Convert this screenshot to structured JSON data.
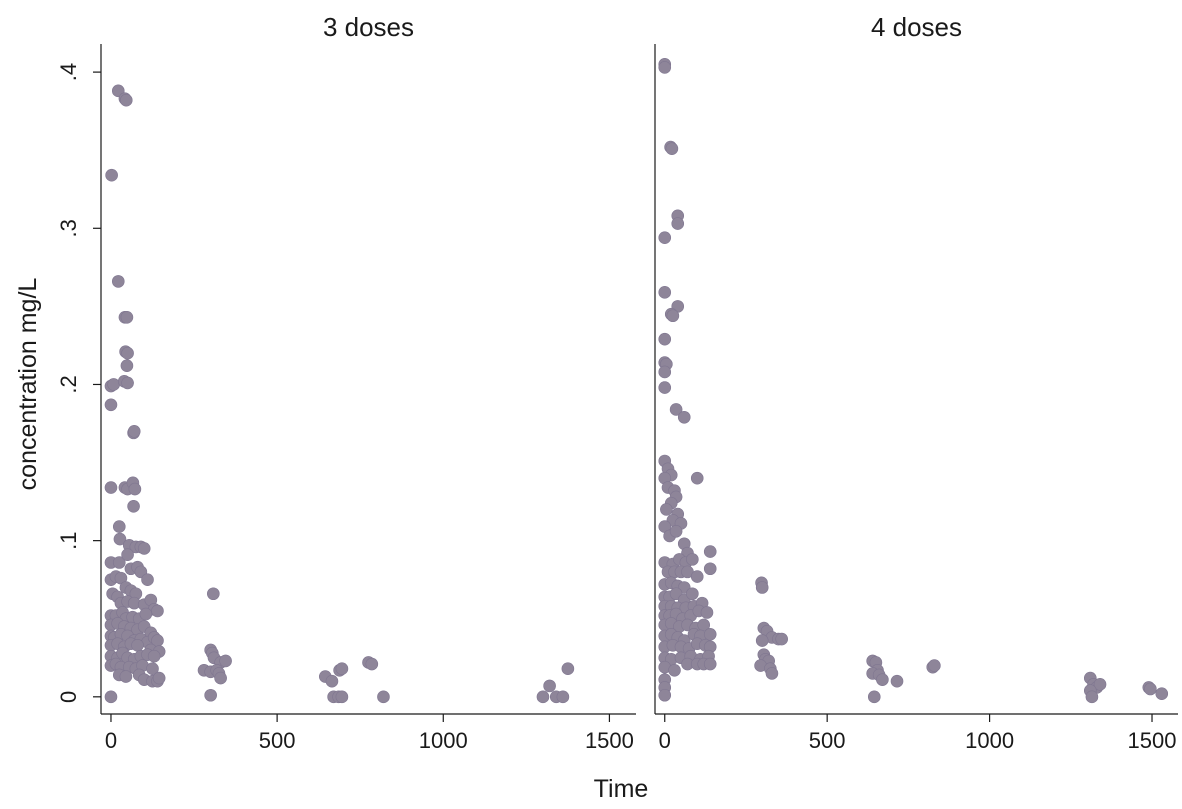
{
  "chart_data": {
    "type": "scatter",
    "xlabel": "Time",
    "ylabel": "concentration mg/L",
    "point_color": "#8e8599",
    "grid": false,
    "panels": [
      {
        "title": "3 doses",
        "xlim": [
          -30,
          1580
        ],
        "ylim": [
          -0.011,
          0.418
        ],
        "xticks": [
          0,
          500,
          1000,
          1500
        ],
        "xtick_labels": [
          "0",
          "500",
          "1000",
          "1500"
        ],
        "yticks": [
          0,
          0.1,
          0.2,
          0.3,
          0.4
        ],
        "ytick_labels": [
          "0",
          ".1",
          ".2",
          ".3",
          ".4"
        ],
        "points": [
          [
            2,
            0.334
          ],
          [
            22,
            0.388
          ],
          [
            42,
            0.383
          ],
          [
            46,
            0.382
          ],
          [
            22,
            0.266
          ],
          [
            42,
            0.243
          ],
          [
            48,
            0.243
          ],
          [
            44,
            0.221
          ],
          [
            50,
            0.22
          ],
          [
            48,
            0.212
          ],
          [
            0,
            0.199
          ],
          [
            8,
            0.2
          ],
          [
            40,
            0.202
          ],
          [
            50,
            0.201
          ],
          [
            0,
            0.187
          ],
          [
            68,
            0.169
          ],
          [
            70,
            0.17
          ],
          [
            0,
            0.134
          ],
          [
            42,
            0.134
          ],
          [
            50,
            0.133
          ],
          [
            66,
            0.137
          ],
          [
            72,
            0.133
          ],
          [
            68,
            0.122
          ],
          [
            25,
            0.109
          ],
          [
            27,
            0.101
          ],
          [
            55,
            0.097
          ],
          [
            75,
            0.096
          ],
          [
            90,
            0.096
          ],
          [
            100,
            0.095
          ],
          [
            0,
            0.086
          ],
          [
            25,
            0.086
          ],
          [
            50,
            0.091
          ],
          [
            60,
            0.082
          ],
          [
            80,
            0.083
          ],
          [
            90,
            0.08
          ],
          [
            110,
            0.075
          ],
          [
            0,
            0.075
          ],
          [
            15,
            0.077
          ],
          [
            30,
            0.076
          ],
          [
            45,
            0.07
          ],
          [
            60,
            0.068
          ],
          [
            75,
            0.066
          ],
          [
            5,
            0.066
          ],
          [
            20,
            0.064
          ],
          [
            30,
            0.06
          ],
          [
            50,
            0.061
          ],
          [
            70,
            0.06
          ],
          [
            100,
            0.059
          ],
          [
            120,
            0.062
          ],
          [
            130,
            0.056
          ],
          [
            0,
            0.052
          ],
          [
            15,
            0.052
          ],
          [
            35,
            0.054
          ],
          [
            45,
            0.05
          ],
          [
            65,
            0.051
          ],
          [
            85,
            0.05
          ],
          [
            105,
            0.053
          ],
          [
            140,
            0.055
          ],
          [
            0,
            0.046
          ],
          [
            20,
            0.047
          ],
          [
            40,
            0.045
          ],
          [
            60,
            0.044
          ],
          [
            80,
            0.043
          ],
          [
            100,
            0.045
          ],
          [
            120,
            0.041
          ],
          [
            0,
            0.039
          ],
          [
            10,
            0.038
          ],
          [
            30,
            0.04
          ],
          [
            50,
            0.039
          ],
          [
            70,
            0.036
          ],
          [
            90,
            0.037
          ],
          [
            110,
            0.035
          ],
          [
            130,
            0.038
          ],
          [
            140,
            0.036
          ],
          [
            0,
            0.033
          ],
          [
            20,
            0.034
          ],
          [
            40,
            0.032
          ],
          [
            60,
            0.034
          ],
          [
            80,
            0.033
          ],
          [
            120,
            0.03
          ],
          [
            145,
            0.029
          ],
          [
            0,
            0.026
          ],
          [
            20,
            0.025
          ],
          [
            35,
            0.028
          ],
          [
            50,
            0.025
          ],
          [
            70,
            0.024
          ],
          [
            90,
            0.026
          ],
          [
            110,
            0.027
          ],
          [
            130,
            0.026
          ],
          [
            0,
            0.02
          ],
          [
            15,
            0.021
          ],
          [
            30,
            0.019
          ],
          [
            55,
            0.019
          ],
          [
            75,
            0.018
          ],
          [
            95,
            0.02
          ],
          [
            125,
            0.018
          ],
          [
            25,
            0.014
          ],
          [
            45,
            0.013
          ],
          [
            85,
            0.014
          ],
          [
            100,
            0.011
          ],
          [
            125,
            0.01
          ],
          [
            140,
            0.01
          ],
          [
            145,
            0.012
          ],
          [
            0,
            0.0
          ],
          [
            308,
            0.066
          ],
          [
            300,
            0.03
          ],
          [
            305,
            0.028
          ],
          [
            310,
            0.025
          ],
          [
            330,
            0.022
          ],
          [
            345,
            0.023
          ],
          [
            280,
            0.017
          ],
          [
            300,
            0.016
          ],
          [
            318,
            0.017
          ],
          [
            325,
            0.015
          ],
          [
            330,
            0.012
          ],
          [
            300,
            0.001
          ],
          [
            645,
            0.013
          ],
          [
            665,
            0.01
          ],
          [
            688,
            0.017
          ],
          [
            695,
            0.018
          ],
          [
            670,
            0.0
          ],
          [
            685,
            0.0
          ],
          [
            695,
            0.0
          ],
          [
            775,
            0.022
          ],
          [
            785,
            0.021
          ],
          [
            820,
            0.0
          ],
          [
            1300,
            0.0
          ],
          [
            1320,
            0.007
          ],
          [
            1340,
            0.0
          ],
          [
            1360,
            0.0
          ],
          [
            1375,
            0.018
          ]
        ]
      },
      {
        "title": "4 doses",
        "xlim": [
          -30,
          1580
        ],
        "ylim": [
          -0.011,
          0.418
        ],
        "xticks": [
          0,
          500,
          1000,
          1500
        ],
        "xtick_labels": [
          "0",
          "500",
          "1000",
          "1500"
        ],
        "yticks": [],
        "ytick_labels": [],
        "points": [
          [
            0,
            0.405
          ],
          [
            0,
            0.403
          ],
          [
            18,
            0.352
          ],
          [
            22,
            0.351
          ],
          [
            40,
            0.308
          ],
          [
            40,
            0.303
          ],
          [
            0,
            0.294
          ],
          [
            0,
            0.259
          ],
          [
            40,
            0.25
          ],
          [
            20,
            0.245
          ],
          [
            25,
            0.244
          ],
          [
            0,
            0.229
          ],
          [
            0,
            0.214
          ],
          [
            5,
            0.213
          ],
          [
            0,
            0.208
          ],
          [
            0,
            0.198
          ],
          [
            35,
            0.184
          ],
          [
            60,
            0.179
          ],
          [
            0,
            0.151
          ],
          [
            10,
            0.146
          ],
          [
            20,
            0.142
          ],
          [
            0,
            0.14
          ],
          [
            10,
            0.134
          ],
          [
            30,
            0.132
          ],
          [
            35,
            0.128
          ],
          [
            100,
            0.14
          ],
          [
            20,
            0.124
          ],
          [
            5,
            0.12
          ],
          [
            40,
            0.117
          ],
          [
            25,
            0.113
          ],
          [
            50,
            0.111
          ],
          [
            0,
            0.109
          ],
          [
            15,
            0.103
          ],
          [
            35,
            0.106
          ],
          [
            60,
            0.098
          ],
          [
            70,
            0.092
          ],
          [
            0,
            0.086
          ],
          [
            25,
            0.085
          ],
          [
            45,
            0.088
          ],
          [
            65,
            0.086
          ],
          [
            85,
            0.088
          ],
          [
            140,
            0.093
          ],
          [
            10,
            0.08
          ],
          [
            30,
            0.08
          ],
          [
            50,
            0.08
          ],
          [
            70,
            0.08
          ],
          [
            100,
            0.077
          ],
          [
            140,
            0.082
          ],
          [
            0,
            0.072
          ],
          [
            20,
            0.073
          ],
          [
            40,
            0.071
          ],
          [
            60,
            0.07
          ],
          [
            0,
            0.064
          ],
          [
            15,
            0.064
          ],
          [
            35,
            0.066
          ],
          [
            60,
            0.062
          ],
          [
            85,
            0.066
          ],
          [
            0,
            0.058
          ],
          [
            20,
            0.058
          ],
          [
            40,
            0.057
          ],
          [
            65,
            0.057
          ],
          [
            90,
            0.058
          ],
          [
            115,
            0.06
          ],
          [
            0,
            0.052
          ],
          [
            15,
            0.052
          ],
          [
            35,
            0.053
          ],
          [
            55,
            0.05
          ],
          [
            80,
            0.052
          ],
          [
            105,
            0.055
          ],
          [
            130,
            0.054
          ],
          [
            0,
            0.046
          ],
          [
            20,
            0.047
          ],
          [
            45,
            0.045
          ],
          [
            70,
            0.046
          ],
          [
            95,
            0.044
          ],
          [
            120,
            0.046
          ],
          [
            0,
            0.039
          ],
          [
            20,
            0.04
          ],
          [
            40,
            0.038
          ],
          [
            60,
            0.036
          ],
          [
            90,
            0.04
          ],
          [
            110,
            0.039
          ],
          [
            140,
            0.04
          ],
          [
            0,
            0.032
          ],
          [
            25,
            0.033
          ],
          [
            50,
            0.032
          ],
          [
            75,
            0.031
          ],
          [
            100,
            0.034
          ],
          [
            125,
            0.033
          ],
          [
            140,
            0.032
          ],
          [
            0,
            0.025
          ],
          [
            20,
            0.024
          ],
          [
            50,
            0.025
          ],
          [
            80,
            0.026
          ],
          [
            110,
            0.024
          ],
          [
            135,
            0.026
          ],
          [
            0,
            0.019
          ],
          [
            30,
            0.017
          ],
          [
            70,
            0.021
          ],
          [
            100,
            0.021
          ],
          [
            120,
            0.021
          ],
          [
            140,
            0.021
          ],
          [
            0,
            0.011
          ],
          [
            0,
            0.006
          ],
          [
            0,
            0.001
          ],
          [
            298,
            0.073
          ],
          [
            300,
            0.07
          ],
          [
            305,
            0.044
          ],
          [
            315,
            0.042
          ],
          [
            330,
            0.038
          ],
          [
            350,
            0.037
          ],
          [
            360,
            0.037
          ],
          [
            300,
            0.036
          ],
          [
            305,
            0.027
          ],
          [
            310,
            0.024
          ],
          [
            320,
            0.023
          ],
          [
            295,
            0.02
          ],
          [
            325,
            0.018
          ],
          [
            330,
            0.015
          ],
          [
            640,
            0.023
          ],
          [
            650,
            0.022
          ],
          [
            655,
            0.017
          ],
          [
            640,
            0.015
          ],
          [
            660,
            0.014
          ],
          [
            670,
            0.011
          ],
          [
            715,
            0.01
          ],
          [
            645,
            0.0
          ],
          [
            825,
            0.019
          ],
          [
            830,
            0.02
          ],
          [
            1310,
            0.012
          ],
          [
            1320,
            0.008
          ],
          [
            1330,
            0.006
          ],
          [
            1340,
            0.008
          ],
          [
            1310,
            0.004
          ],
          [
            1315,
            0.0
          ],
          [
            1490,
            0.006
          ],
          [
            1495,
            0.005
          ],
          [
            1530,
            0.002
          ]
        ]
      }
    ]
  }
}
